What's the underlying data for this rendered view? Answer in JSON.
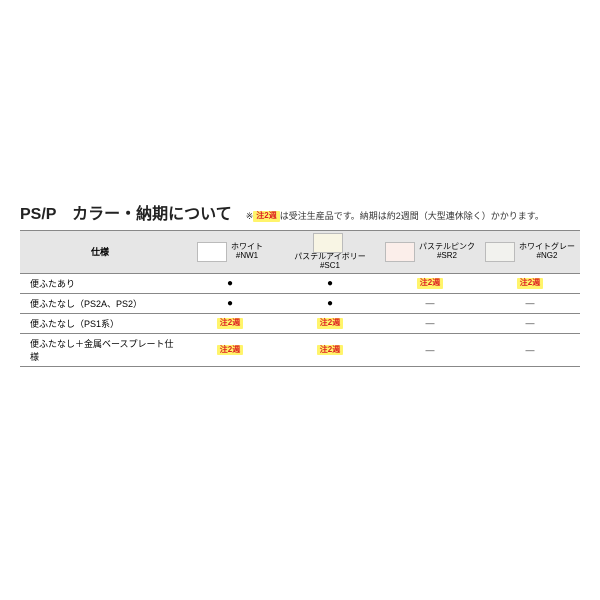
{
  "title": "PS/P　カラー・納期について",
  "note_prefix": "※",
  "note_badge": "注2週",
  "note_text": "は受注生産品です。納期は約2週間（大型連休除く）かかります。",
  "table": {
    "spec_header": "仕様",
    "columns": [
      {
        "label": "ホワイト",
        "code": "#NW1",
        "swatch": "#ffffff"
      },
      {
        "label": "パステルアイボリー",
        "code": "#SC1",
        "swatch": "#f8f5e4"
      },
      {
        "label": "パステルピンク",
        "code": "#SR2",
        "swatch": "#fbeeea"
      },
      {
        "label": "ホワイトグレー",
        "code": "#NG2",
        "swatch": "#f2f2ee"
      }
    ],
    "rows": [
      {
        "label": "便ふたあり",
        "cells": [
          "dot",
          "dot",
          "badge",
          "badge"
        ]
      },
      {
        "label": "便ふたなし（PS2A、PS2）",
        "cells": [
          "dot",
          "dot",
          "dash",
          "dash"
        ]
      },
      {
        "label": "便ふたなし（PS1系）",
        "cells": [
          "badge",
          "badge",
          "dash",
          "dash"
        ]
      },
      {
        "label": "便ふたなし＋金属ベースプレート仕様",
        "cells": [
          "badge",
          "badge",
          "dash",
          "dash"
        ]
      }
    ],
    "badge_text": "注2週",
    "dash_text": "—"
  },
  "colors": {
    "header_bg": "#e6e6e6",
    "border": "#888888",
    "badge_bg": "#fff46b",
    "badge_fg": "#d22222"
  }
}
